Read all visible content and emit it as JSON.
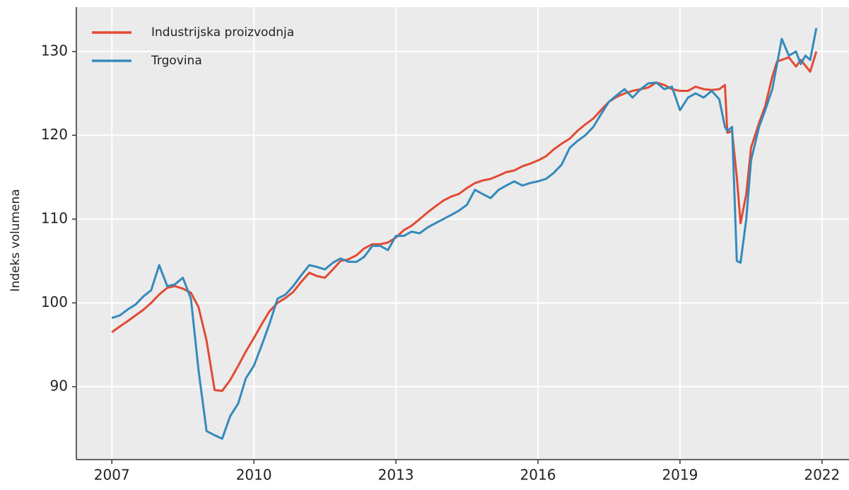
{
  "chart_data": {
    "type": "line",
    "y_label": "Indeks volumena",
    "x": [
      2007,
      2007.17,
      2007.33,
      2007.5,
      2007.67,
      2007.83,
      2008,
      2008.17,
      2008.33,
      2008.5,
      2008.67,
      2008.83,
      2009,
      2009.17,
      2009.33,
      2009.5,
      2009.67,
      2009.83,
      2010,
      2010.17,
      2010.33,
      2010.5,
      2010.67,
      2010.83,
      2011,
      2011.17,
      2011.33,
      2011.5,
      2011.67,
      2011.83,
      2012,
      2012.17,
      2012.33,
      2012.5,
      2012.67,
      2012.83,
      2013,
      2013.17,
      2013.33,
      2013.5,
      2013.67,
      2013.83,
      2014,
      2014.17,
      2014.33,
      2014.5,
      2014.67,
      2014.83,
      2015,
      2015.17,
      2015.33,
      2015.5,
      2015.67,
      2015.83,
      2016,
      2016.17,
      2016.33,
      2016.5,
      2016.67,
      2016.83,
      2017,
      2017.17,
      2017.33,
      2017.5,
      2017.67,
      2017.83,
      2018,
      2018.17,
      2018.33,
      2018.5,
      2018.67,
      2018.83,
      2019,
      2019.17,
      2019.33,
      2019.5,
      2019.67,
      2019.83,
      2019.95,
      2020,
      2020.1,
      2020.2,
      2020.28,
      2020.4,
      2020.5,
      2020.67,
      2020.8,
      2020.95,
      2021.05,
      2021.15,
      2021.3,
      2021.45,
      2021.55,
      2021.65,
      2021.75,
      2021.88
    ],
    "series": [
      {
        "name": "Industrijska proizvodnja",
        "color": "#e24a33",
        "values": [
          96.5,
          97.2,
          97.8,
          98.5,
          99.2,
          100.0,
          101.0,
          101.8,
          102.0,
          101.7,
          101.2,
          99.5,
          95.5,
          89.6,
          89.5,
          90.8,
          92.5,
          94.2,
          95.8,
          97.5,
          99.0,
          100.0,
          100.6,
          101.3,
          102.5,
          103.6,
          103.2,
          103.0,
          104.0,
          105.0,
          105.2,
          105.7,
          106.5,
          107.0,
          107.0,
          107.2,
          107.8,
          108.7,
          109.2,
          110.0,
          110.8,
          111.5,
          112.2,
          112.7,
          113.0,
          113.7,
          114.3,
          114.6,
          114.8,
          115.2,
          115.6,
          115.8,
          116.3,
          116.6,
          117.0,
          117.5,
          118.3,
          119.0,
          119.6,
          120.5,
          121.3,
          122.0,
          123.0,
          124.0,
          124.6,
          125.0,
          125.3,
          125.5,
          125.7,
          126.3,
          126.0,
          125.5,
          125.3,
          125.3,
          125.8,
          125.5,
          125.4,
          125.5,
          126.0,
          120.3,
          120.5,
          115,
          109.5,
          113,
          118.5,
          121.5,
          123.5,
          127,
          128.8,
          129,
          129.3,
          128.2,
          129,
          128.3,
          127.6,
          130
        ]
      },
      {
        "name": "Trgovina",
        "color": "#348abd",
        "values": [
          98.2,
          98.5,
          99.2,
          99.8,
          100.8,
          101.5,
          104.5,
          102.0,
          102.2,
          103.0,
          100.5,
          92.0,
          84.7,
          84.2,
          83.8,
          86.5,
          88.0,
          91.0,
          92.5,
          95.0,
          97.5,
          100.5,
          101.0,
          102.0,
          103.3,
          104.5,
          104.3,
          104.0,
          104.8,
          105.3,
          104.9,
          104.9,
          105.5,
          106.8,
          106.8,
          106.3,
          108.0,
          108.0,
          108.5,
          108.3,
          109.0,
          109.5,
          110.0,
          110.5,
          111.0,
          111.7,
          113.5,
          113.0,
          112.5,
          113.5,
          114.0,
          114.5,
          114.0,
          114.3,
          114.5,
          114.8,
          115.5,
          116.5,
          118.5,
          119.3,
          120.0,
          121.0,
          122.5,
          124.0,
          124.8,
          125.5,
          124.5,
          125.5,
          126.2,
          126.3,
          125.5,
          125.8,
          123.0,
          124.5,
          125.0,
          124.5,
          125.3,
          124.3,
          121.0,
          120.5,
          121.0,
          105.0,
          104.8,
          110.0,
          117.0,
          121.0,
          123.0,
          125.5,
          128.5,
          131.5,
          129.5,
          130.0,
          128.5,
          129.5,
          129.0,
          132.8
        ]
      }
    ],
    "xlim": [
      2006.25,
      2022.57
    ],
    "xticks": [
      2007,
      2010,
      2013,
      2016,
      2019,
      2022
    ],
    "ylim": [
      81.3,
      135.3
    ],
    "yticks": [
      90,
      100,
      110,
      120,
      130
    ],
    "grid": true,
    "legend": "upper left"
  }
}
